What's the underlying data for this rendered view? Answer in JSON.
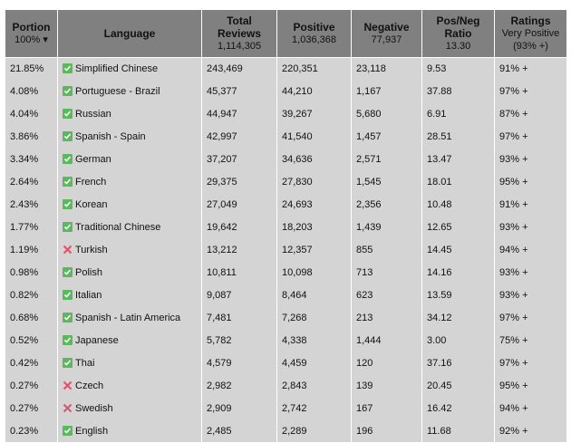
{
  "header": [
    {
      "title": "Portion",
      "sub": "100% ▾"
    },
    {
      "title": "Language"
    },
    {
      "title": "Total Reviews",
      "sub": "1,114,305"
    },
    {
      "title": "Positive",
      "sub": "1,036,368"
    },
    {
      "title": "Negative",
      "sub": "77,937"
    },
    {
      "title": "Pos/Neg Ratio",
      "sub": "13.30"
    },
    {
      "title": "Ratings",
      "sub": "Very Positive (93% +)"
    }
  ],
  "rows": [
    {
      "check": true,
      "cells": [
        "21.85%",
        "Simplified Chinese",
        "243,469",
        "220,351",
        "23,118",
        "9.53",
        "91% +"
      ]
    },
    {
      "check": true,
      "cells": [
        "4.08%",
        "Portuguese - Brazil",
        "45,377",
        "44,210",
        "1,167",
        "37.88",
        "97% +"
      ]
    },
    {
      "check": true,
      "cells": [
        "4.04%",
        "Russian",
        "44,947",
        "39,267",
        "5,680",
        "6.91",
        "87% +"
      ]
    },
    {
      "check": true,
      "cells": [
        "3.86%",
        "Spanish - Spain",
        "42,997",
        "41,540",
        "1,457",
        "28.51",
        "97% +"
      ]
    },
    {
      "check": true,
      "cells": [
        "3.34%",
        "German",
        "37,207",
        "34,636",
        "2,571",
        "13.47",
        "93% +"
      ]
    },
    {
      "check": true,
      "cells": [
        "2.64%",
        "French",
        "29,375",
        "27,830",
        "1,545",
        "18.01",
        "95% +"
      ]
    },
    {
      "check": true,
      "cells": [
        "2.43%",
        "Korean",
        "27,049",
        "24,693",
        "2,356",
        "10.48",
        "91% +"
      ]
    },
    {
      "check": true,
      "cells": [
        "1.77%",
        "Traditional Chinese",
        "19,642",
        "18,203",
        "1,439",
        "12.65",
        "93% +"
      ]
    },
    {
      "check": false,
      "cells": [
        "1.19%",
        "Turkish",
        "13,212",
        "12,357",
        "855",
        "14.45",
        "94% +"
      ]
    },
    {
      "check": true,
      "cells": [
        "0.98%",
        "Polish",
        "10,811",
        "10,098",
        "713",
        "14.16",
        "93% +"
      ]
    },
    {
      "check": true,
      "cells": [
        "0.82%",
        "Italian",
        "9,087",
        "8,464",
        "623",
        "13.59",
        "93% +"
      ]
    },
    {
      "check": true,
      "cells": [
        "0.68%",
        "Spanish - Latin America",
        "7,481",
        "7,268",
        "213",
        "34.12",
        "97% +"
      ]
    },
    {
      "check": true,
      "cells": [
        "0.52%",
        "Japanese",
        "5,782",
        "4,338",
        "1,444",
        "3.00",
        "75% +"
      ]
    },
    {
      "check": true,
      "cells": [
        "0.42%",
        "Thai",
        "4,579",
        "4,459",
        "120",
        "37.16",
        "97% +"
      ]
    },
    {
      "check": false,
      "cells": [
        "0.27%",
        "Czech",
        "2,982",
        "2,843",
        "139",
        "20.45",
        "95% +"
      ]
    },
    {
      "check": false,
      "cells": [
        "0.27%",
        "Swedish",
        "2,909",
        "2,742",
        "167",
        "16.42",
        "94% +"
      ]
    },
    {
      "check": true,
      "cells": [
        "0.23%",
        "English",
        "2,485",
        "2,289",
        "196",
        "11.68",
        "92% +"
      ]
    }
  ]
}
